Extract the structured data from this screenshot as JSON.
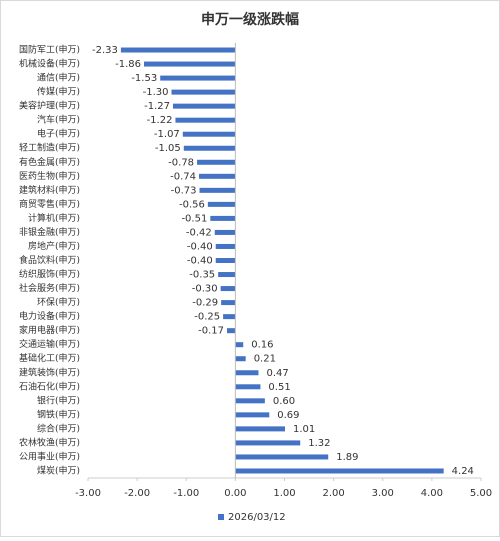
{
  "chart_data": {
    "type": "bar",
    "orientation": "horizontal",
    "title": "申万一级涨跌幅",
    "categories": [
      "国防军工(申万)",
      "机械设备(申万)",
      "通信(申万)",
      "传媒(申万)",
      "美容护理(申万)",
      "汽车(申万)",
      "电子(申万)",
      "轻工制造(申万)",
      "有色金属(申万)",
      "医药生物(申万)",
      "建筑材料(申万)",
      "商贸零售(申万)",
      "计算机(申万)",
      "非银金融(申万)",
      "房地产(申万)",
      "食品饮料(申万)",
      "纺织服饰(申万)",
      "社会服务(申万)",
      "环保(申万)",
      "电力设备(申万)",
      "家用电器(申万)",
      "交通运输(申万)",
      "基础化工(申万)",
      "建筑装饰(申万)",
      "石油石化(申万)",
      "银行(申万)",
      "钢铁(申万)",
      "综合(申万)",
      "农林牧渔(申万)",
      "公用事业(申万)",
      "煤炭(申万)"
    ],
    "series": [
      {
        "name": "2026/03/12",
        "color": "#4472c4",
        "values": [
          -2.33,
          -1.86,
          -1.53,
          -1.3,
          -1.27,
          -1.22,
          -1.07,
          -1.05,
          -0.78,
          -0.74,
          -0.73,
          -0.56,
          -0.51,
          -0.42,
          -0.4,
          -0.4,
          -0.35,
          -0.3,
          -0.29,
          -0.25,
          -0.17,
          0.16,
          0.21,
          0.47,
          0.51,
          0.6,
          0.69,
          1.01,
          1.32,
          1.89,
          4.24
        ],
        "value_labels": [
          "-2.33",
          "-1.86",
          "-1.53",
          "-1.30",
          "-1.27",
          "-1.22",
          "-1.07",
          "-1.05",
          "-0.78",
          "-0.74",
          "-0.73",
          "-0.56",
          "-0.51",
          "-0.42",
          "-0.40",
          "-0.40",
          "-0.35",
          "-0.30",
          "-0.29",
          "-0.25",
          "-0.17",
          "0.16",
          "0.21",
          "0.47",
          "0.51",
          "0.60",
          "0.69",
          "1.01",
          "1.32",
          "1.89",
          "4.24"
        ]
      }
    ],
    "xlim": [
      -3,
      5
    ],
    "xticks": [
      {
        "value": -3,
        "label": "-3.00"
      },
      {
        "value": -2,
        "label": "-2.00"
      },
      {
        "value": -1,
        "label": "-1.00"
      },
      {
        "value": 0,
        "label": "0.00"
      },
      {
        "value": 1,
        "label": "1.00"
      },
      {
        "value": 2,
        "label": "2.00"
      },
      {
        "value": 3,
        "label": "3.00"
      },
      {
        "value": 4,
        "label": "4.00"
      },
      {
        "value": 5,
        "label": "5.00"
      }
    ],
    "grid": false,
    "legend": "bottom"
  }
}
